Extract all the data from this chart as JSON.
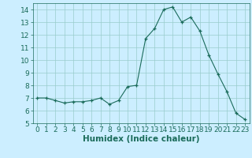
{
  "x": [
    0,
    1,
    2,
    3,
    4,
    5,
    6,
    7,
    8,
    9,
    10,
    11,
    12,
    13,
    14,
    15,
    16,
    17,
    18,
    19,
    20,
    21,
    22,
    23
  ],
  "y": [
    7.0,
    7.0,
    6.8,
    6.6,
    6.7,
    6.7,
    6.8,
    7.0,
    6.5,
    6.8,
    7.9,
    8.0,
    11.7,
    12.5,
    14.0,
    14.2,
    13.0,
    13.4,
    12.3,
    10.4,
    8.9,
    7.5,
    5.8,
    5.3
  ],
  "line_color": "#1a6b5a",
  "marker": "+",
  "bg_color": "#cceeff",
  "grid_color": "#99cccc",
  "xlabel": "Humidex (Indice chaleur)",
  "ylim": [
    5,
    14.5
  ],
  "xlim": [
    -0.5,
    23.5
  ],
  "yticks": [
    5,
    6,
    7,
    8,
    9,
    10,
    11,
    12,
    13,
    14
  ],
  "xticks": [
    0,
    1,
    2,
    3,
    4,
    5,
    6,
    7,
    8,
    9,
    10,
    11,
    12,
    13,
    14,
    15,
    16,
    17,
    18,
    19,
    20,
    21,
    22,
    23
  ],
  "tick_color": "#1a6b5a",
  "label_color": "#1a6b5a",
  "font_size": 6.5,
  "xlabel_fontsize": 7.5
}
